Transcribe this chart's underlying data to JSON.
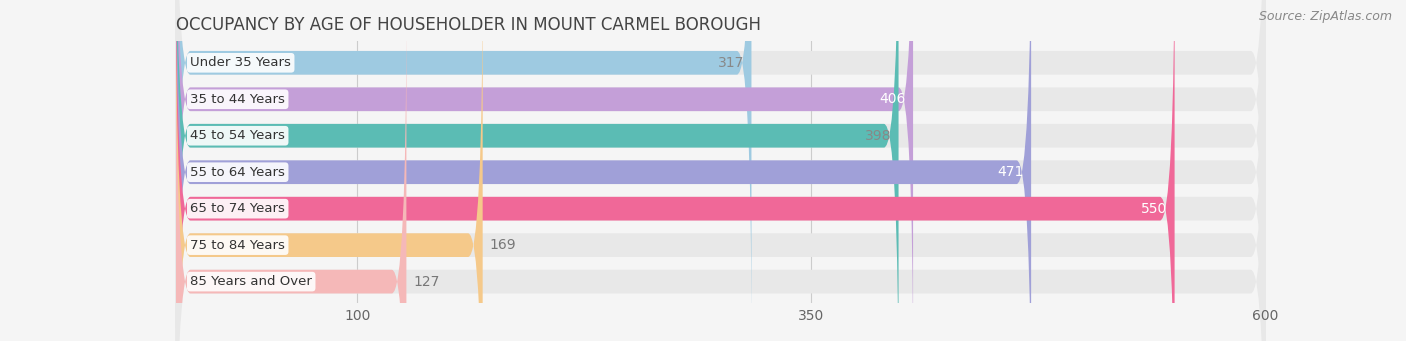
{
  "title": "OCCUPANCY BY AGE OF HOUSEHOLDER IN MOUNT CARMEL BOROUGH",
  "source": "Source: ZipAtlas.com",
  "categories": [
    "Under 35 Years",
    "35 to 44 Years",
    "45 to 54 Years",
    "55 to 64 Years",
    "65 to 74 Years",
    "75 to 84 Years",
    "85 Years and Over"
  ],
  "values": [
    317,
    406,
    398,
    471,
    550,
    169,
    127
  ],
  "bar_colors": [
    "#9ecae1",
    "#c49fd8",
    "#5bbcb4",
    "#a0a0d8",
    "#f06898",
    "#f5c98a",
    "#f5b8b8"
  ],
  "value_label_inside": [
    true,
    true,
    true,
    true,
    true,
    false,
    false
  ],
  "value_label_colors_inside": [
    "#888888",
    "#ffffff",
    "#888888",
    "#ffffff",
    "#ffffff",
    "#888888",
    "#888888"
  ],
  "xlim_max": 600,
  "xticks": [
    100,
    350,
    600
  ],
  "background_color": "#f5f5f5",
  "bar_background_color": "#e8e8e8",
  "title_fontsize": 12,
  "source_fontsize": 9,
  "bar_height": 0.65,
  "label_fontsize": 10,
  "cat_fontsize": 9.5
}
